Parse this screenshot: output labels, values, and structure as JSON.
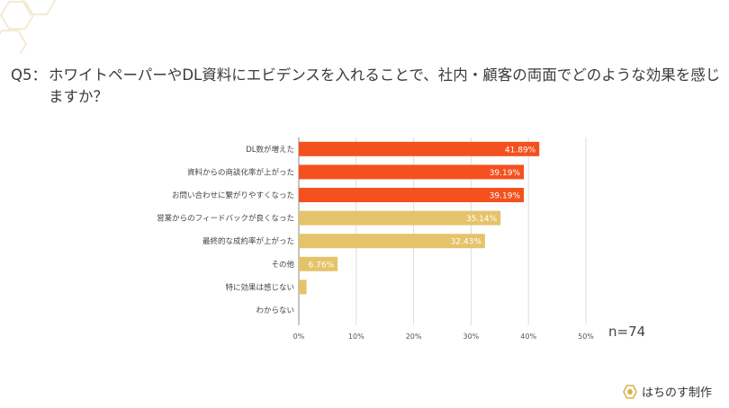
{
  "question": {
    "number": "Q5：",
    "text": "ホワイトペーパーやDL資料にエビデンスを入れることで、社内・顧客の両面でどのような効果を感じますか？"
  },
  "chart_data": {
    "type": "bar",
    "orientation": "horizontal",
    "categories": [
      "DL数が増えた",
      "資料からの商談化率が上がった",
      "お問い合わせに繋がりやすくなった",
      "営業からのフィードバックが良くなった",
      "最終的な成約率が上がった",
      "その他",
      "特に効果は感じない",
      "わからない"
    ],
    "values": [
      41.89,
      39.19,
      39.19,
      35.14,
      32.43,
      6.76,
      1.35,
      0
    ],
    "value_labels": [
      "41.89%",
      "39.19%",
      "39.19%",
      "35.14%",
      "32.43%",
      "6.76%",
      "",
      ""
    ],
    "bar_colors": [
      "#f4511e",
      "#f4511e",
      "#f4511e",
      "#e5c36a",
      "#e5c36a",
      "#e5c36a",
      "#e5c36a",
      "#e5c36a"
    ],
    "xlim": [
      0,
      50
    ],
    "xticks": [
      "0%",
      "10%",
      "20%",
      "30%",
      "40%",
      "50%"
    ],
    "grid": true
  },
  "sample_size": "n=74",
  "brand": {
    "name": "はちのす制作",
    "icon": "hexagon-logo-icon"
  },
  "colors": {
    "accent": "#f4511e",
    "secondary": "#e5c36a",
    "text": "#3a3a3a"
  }
}
